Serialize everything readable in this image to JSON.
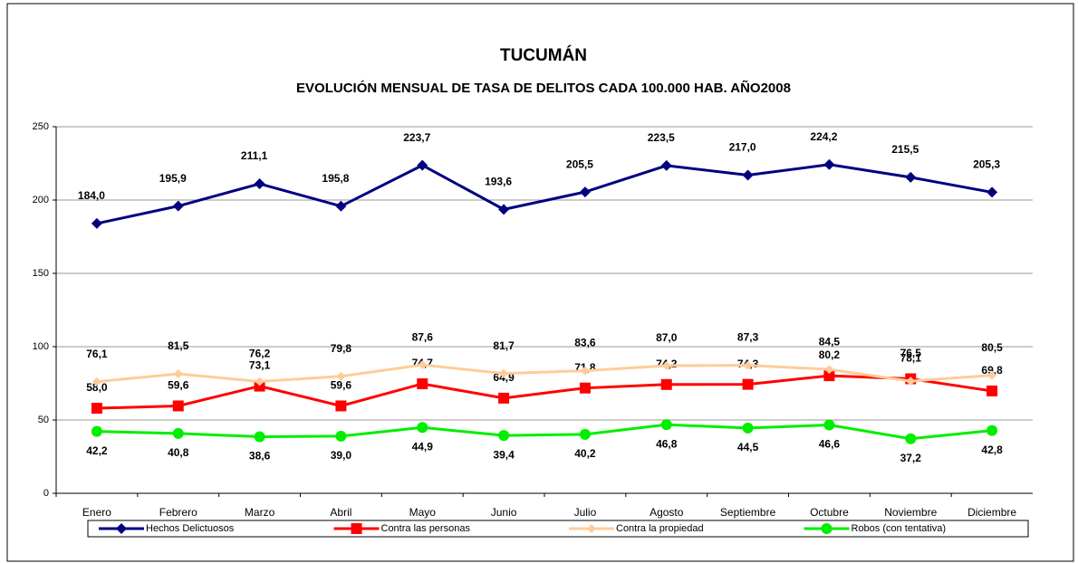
{
  "chart_data": {
    "type": "line",
    "title": "TUCUMÁN",
    "subtitle": "EVOLUCIÓN MENSUAL DE TASA DE DELITOS CADA 100.000 HAB. AÑO2008",
    "categories": [
      "Enero",
      "Febrero",
      "Marzo",
      "Abril",
      "Mayo",
      "Junio",
      "Julio",
      "Agosto",
      "Septiembre",
      "Octubre",
      "Noviembre",
      "Diciembre"
    ],
    "ylim": [
      0,
      250
    ],
    "yticks": [
      0,
      50,
      100,
      150,
      200,
      250
    ],
    "grid": true,
    "legend": "bottom",
    "series": [
      {
        "name": "Hechos Delictuosos",
        "color": "#000080",
        "marker": "diamond",
        "values": [
          184.0,
          195.9,
          211.1,
          195.8,
          223.7,
          193.6,
          205.5,
          223.5,
          217.0,
          224.2,
          215.5,
          205.3
        ],
        "value_labels": [
          "184,0",
          "195,9",
          "211,1",
          "195,8",
          "223,7",
          "193,6",
          "205,5",
          "223,5",
          "217,0",
          "224,2",
          "215,5",
          "205,3"
        ]
      },
      {
        "name": "Contra las personas",
        "color": "#ff0000",
        "marker": "square",
        "values": [
          58.0,
          59.6,
          73.1,
          59.6,
          74.7,
          64.9,
          71.8,
          74.2,
          74.3,
          80.2,
          78.1,
          69.8
        ],
        "value_labels": [
          "58,0",
          "59,6",
          "73,1",
          "59,6",
          "74,7",
          "64,9",
          "71,8",
          "74,2",
          "74,3",
          "80,2",
          "78,1",
          "69,8"
        ]
      },
      {
        "name": "Contra la propiedad",
        "color": "#ffcc99",
        "marker": "small-diamond",
        "values": [
          76.1,
          81.5,
          76.2,
          79.8,
          87.6,
          81.7,
          83.6,
          87.0,
          87.3,
          84.5,
          76.5,
          80.5
        ],
        "value_labels": [
          "76,1",
          "81,5",
          "76,2",
          "79,8",
          "87,6",
          "81,7",
          "83,6",
          "87,0",
          "87,3",
          "84,5",
          "76,5",
          "80,5"
        ]
      },
      {
        "name": "Robos (con tentativa)",
        "color": "#00ee00",
        "marker": "circle",
        "values": [
          42.2,
          40.8,
          38.6,
          39.0,
          44.9,
          39.4,
          40.2,
          46.8,
          44.5,
          46.6,
          37.2,
          42.8
        ],
        "value_labels": [
          "42,2",
          "40,8",
          "38,6",
          "39,0",
          "44,9",
          "39,4",
          "40,2",
          "46,8",
          "44,5",
          "46,6",
          "37,2",
          "42,8"
        ]
      }
    ]
  }
}
